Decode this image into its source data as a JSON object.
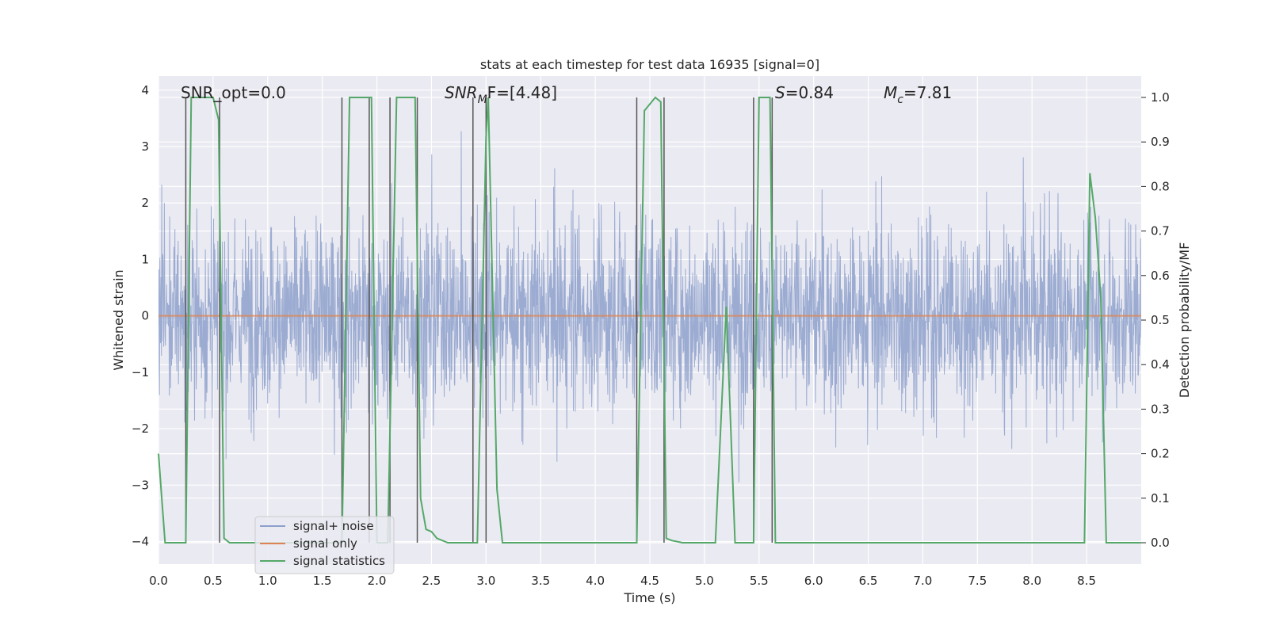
{
  "chart_data": {
    "type": "line",
    "title": "stats at each timestep for test data 16935 [signal=0]",
    "xlabel": "Time (s)",
    "ylabel_left": "Whitened strain",
    "ylabel_right": "Detection probability/MF",
    "xlim": [
      0.0,
      9.0
    ],
    "ylim_left": [
      -4.4,
      4.25
    ],
    "ylim_right": [
      -0.048,
      1.048
    ],
    "x_ticks": [
      "0.0",
      "0.5",
      "1.0",
      "1.5",
      "2.0",
      "2.5",
      "3.0",
      "3.5",
      "4.0",
      "4.5",
      "5.0",
      "5.5",
      "6.0",
      "6.5",
      "7.0",
      "7.5",
      "8.0",
      "8.5"
    ],
    "y_ticks_left": [
      "−4",
      "−3",
      "−2",
      "−1",
      "0",
      "1",
      "2",
      "3",
      "4"
    ],
    "y_ticks_right": [
      "0.0",
      "0.1",
      "0.2",
      "0.3",
      "0.4",
      "0.5",
      "0.6",
      "0.7",
      "0.8",
      "0.9",
      "1.0"
    ],
    "grid": true,
    "legend_placement": "lower-left",
    "annotations": {
      "snr_opt": "SNR_opt=0.0",
      "snr_mf_main": "SNR",
      "snr_mf_sub": "M",
      "snr_mf_rest": "F=[4.48]",
      "s_label": "S",
      "s_value": "=0.84",
      "mc_main": "M",
      "mc_sub": "c",
      "mc_value": "=7.81"
    },
    "series": [
      {
        "name": "signal+ noise",
        "axis": "left",
        "color": "#8da0cb",
        "style": "dense noise trace",
        "amplitude_range": [
          -3.8,
          3.5
        ]
      },
      {
        "name": "signal only",
        "axis": "left",
        "color": "#dd8452",
        "x": [
          0.0,
          9.0
        ],
        "y": [
          0.0,
          0.0
        ]
      },
      {
        "name": "signal statistics",
        "axis": "right",
        "color": "#55a868",
        "x": [
          0.0,
          0.03,
          0.06,
          0.25,
          0.3,
          0.5,
          0.55,
          0.6,
          0.65,
          1.0,
          1.5,
          1.68,
          1.75,
          1.95,
          2.0,
          2.05,
          2.1,
          2.18,
          2.35,
          2.4,
          2.45,
          2.5,
          2.55,
          2.65,
          2.92,
          3.0,
          3.02,
          3.1,
          3.15,
          3.5,
          4.0,
          4.38,
          4.45,
          4.55,
          4.6,
          4.65,
          4.7,
          4.8,
          4.9,
          5.1,
          5.2,
          5.28,
          5.45,
          5.5,
          5.6,
          5.65,
          5.72,
          5.8,
          6.0,
          8.0,
          8.48,
          8.53,
          8.58,
          8.63,
          8.68,
          9.0
        ],
        "y": [
          0.2,
          0.1,
          0.0,
          0.0,
          1.0,
          1.0,
          0.95,
          0.01,
          0.0,
          0.0,
          0.0,
          0.0,
          1.0,
          1.0,
          0.0,
          0.0,
          0.0,
          1.0,
          1.0,
          0.1,
          0.03,
          0.025,
          0.01,
          0.0,
          0.0,
          0.91,
          1.0,
          0.12,
          0.0,
          0.0,
          0.0,
          0.0,
          0.97,
          1.0,
          0.99,
          0.01,
          0.005,
          0.0,
          0.0,
          0.0,
          0.53,
          0.0,
          0.0,
          1.0,
          1.0,
          0.0,
          0.0,
          0.0,
          0.0,
          0.0,
          0.0,
          0.83,
          0.73,
          0.55,
          0.0,
          0.0
        ]
      }
    ],
    "marker_lines_x": [
      0.25,
      0.56,
      1.68,
      1.93,
      2.12,
      2.37,
      2.88,
      3.0,
      4.38,
      4.63,
      5.45,
      5.62
    ]
  }
}
